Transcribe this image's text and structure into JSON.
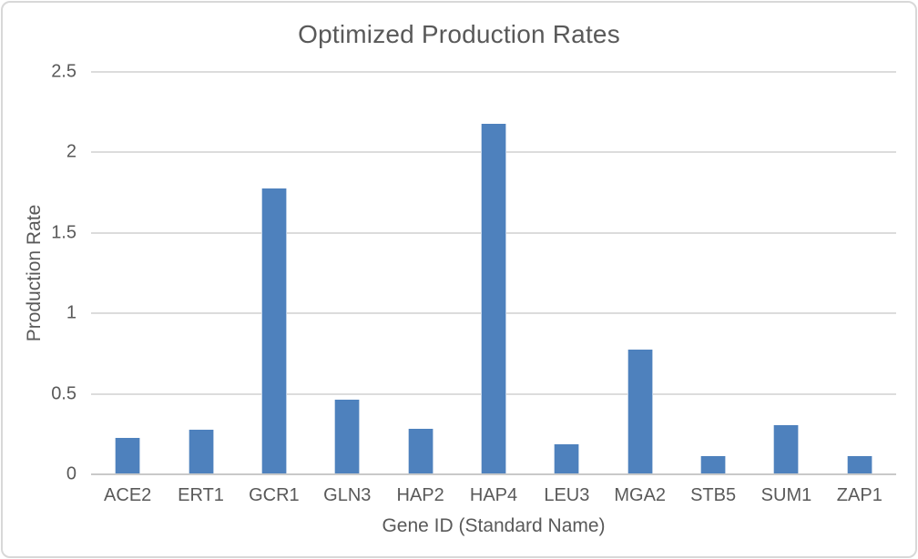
{
  "chart_data": {
    "type": "bar",
    "title": "Optimized Production Rates",
    "xlabel": "Gene ID (Standard Name)",
    "ylabel": "Production Rate",
    "categories": [
      "ACE2",
      "ERT1",
      "GCR1",
      "GLN3",
      "HAP2",
      "HAP4",
      "LEU3",
      "MGA2",
      "STB5",
      "SUM1",
      "ZAP1"
    ],
    "values": [
      0.22,
      0.27,
      1.77,
      0.46,
      0.28,
      2.17,
      0.18,
      0.77,
      0.11,
      0.3,
      0.11
    ],
    "ylim": [
      0,
      2.5
    ],
    "yticks": [
      0,
      0.5,
      1,
      1.5,
      2,
      2.5
    ],
    "grid": true,
    "legend": false,
    "colors": {
      "bar": "#4e81bd",
      "gridline": "#dcdcdc",
      "axis_line": "#c9c9c9",
      "text": "#595959",
      "frame_border": "#d8d8d8"
    }
  }
}
